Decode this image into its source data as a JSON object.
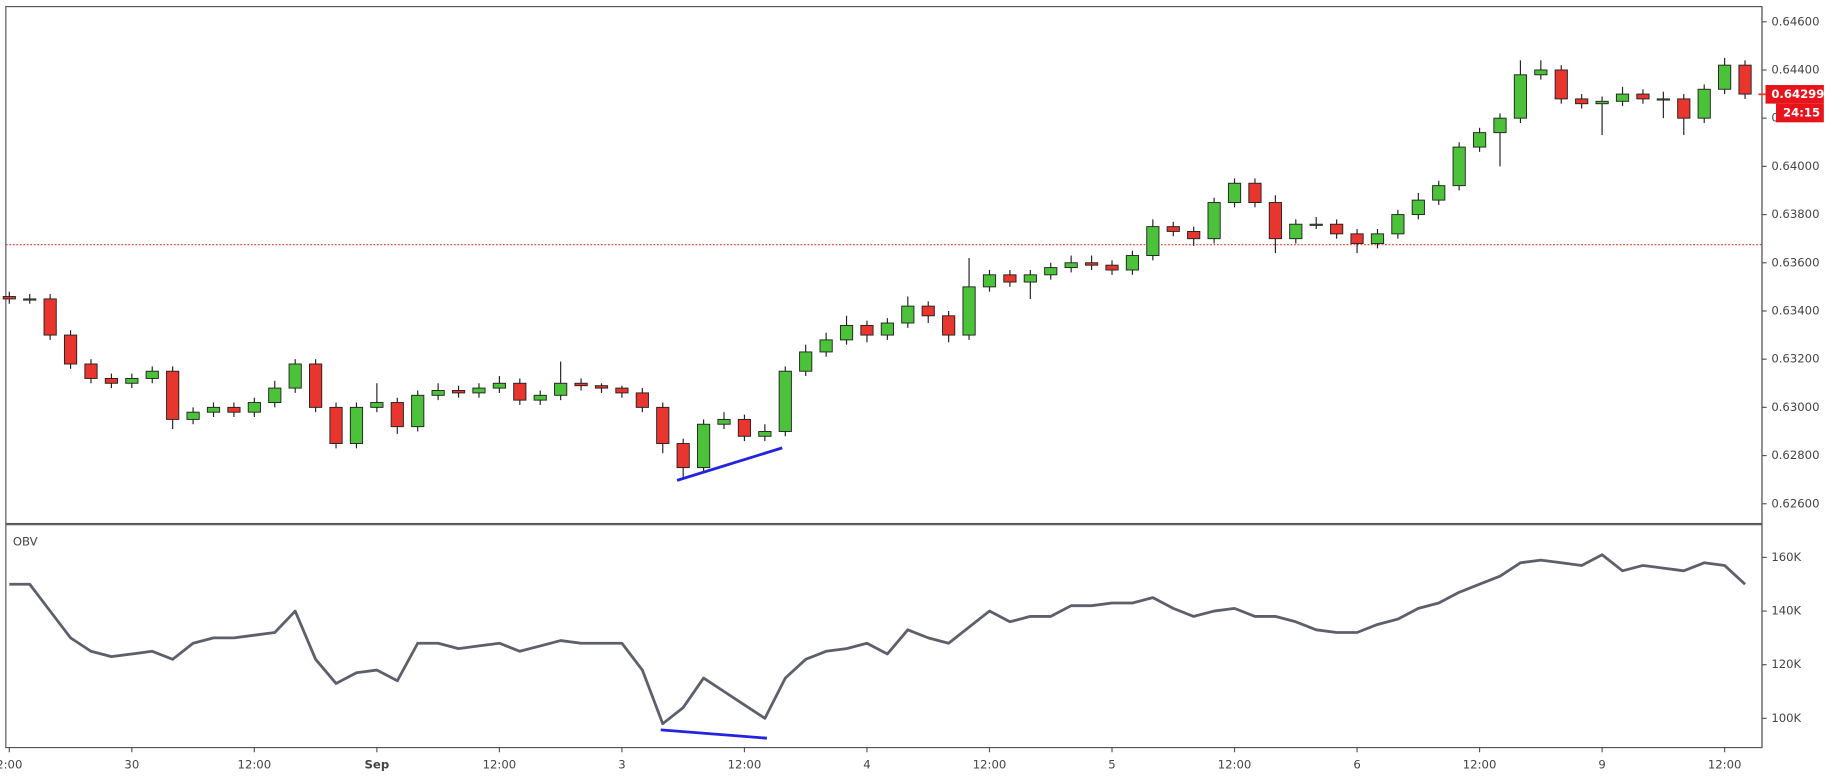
{
  "chart_data": [
    {
      "type": "candlestick",
      "x": [
        0,
        2,
        4,
        6,
        8,
        10,
        12,
        14,
        16,
        18,
        20,
        22,
        24,
        26,
        28,
        30,
        32,
        34,
        36,
        38,
        40,
        42,
        44,
        46,
        48,
        50,
        52,
        54,
        56,
        58,
        60,
        62,
        64,
        66,
        68,
        70,
        72,
        74,
        76,
        78,
        80,
        82,
        84,
        86,
        88,
        90,
        92,
        94,
        96,
        98,
        100,
        102,
        104,
        106,
        108,
        110,
        112,
        114,
        116,
        118,
        120,
        122,
        124,
        126,
        128,
        130,
        132,
        134,
        136,
        138,
        140,
        142,
        144,
        146,
        148,
        150,
        152,
        154,
        156,
        158,
        160,
        162,
        164,
        166,
        168,
        170
      ],
      "open": [
        0.6346,
        0.6345,
        0.6345,
        0.633,
        0.6318,
        0.6312,
        0.631,
        0.6312,
        0.6315,
        0.6295,
        0.6298,
        0.63,
        0.6298,
        0.6302,
        0.6308,
        0.6318,
        0.63,
        0.6285,
        0.63,
        0.6302,
        0.6292,
        0.6305,
        0.6307,
        0.6306,
        0.6308,
        0.631,
        0.6303,
        0.6305,
        0.631,
        0.6309,
        0.6308,
        0.6306,
        0.63,
        0.6285,
        0.6275,
        0.6293,
        0.6295,
        0.6288,
        0.629,
        0.6315,
        0.6323,
        0.6328,
        0.6334,
        0.633,
        0.6335,
        0.6342,
        0.6338,
        0.633,
        0.635,
        0.6355,
        0.6352,
        0.6355,
        0.6358,
        0.636,
        0.6359,
        0.6357,
        0.6363,
        0.6375,
        0.6373,
        0.637,
        0.6385,
        0.6393,
        0.6385,
        0.637,
        0.6376,
        0.6376,
        0.6372,
        0.6368,
        0.6372,
        0.638,
        0.6386,
        0.6392,
        0.6408,
        0.6414,
        0.642,
        0.6438,
        0.644,
        0.6428,
        0.6426,
        0.6427,
        0.643,
        0.6428,
        0.6428,
        0.642,
        0.6432,
        0.6442
      ],
      "high": [
        0.6348,
        0.6347,
        0.6347,
        0.6332,
        0.632,
        0.6314,
        0.6314,
        0.6317,
        0.6317,
        0.63,
        0.6302,
        0.6302,
        0.6304,
        0.6311,
        0.632,
        0.632,
        0.6302,
        0.6302,
        0.631,
        0.6304,
        0.6307,
        0.631,
        0.6309,
        0.631,
        0.6313,
        0.6312,
        0.6307,
        0.6319,
        0.6312,
        0.631,
        0.6309,
        0.6308,
        0.6302,
        0.6287,
        0.6295,
        0.6298,
        0.6297,
        0.6293,
        0.6317,
        0.6326,
        0.6331,
        0.6338,
        0.6336,
        0.6337,
        0.6346,
        0.6344,
        0.634,
        0.6362,
        0.6357,
        0.6357,
        0.6357,
        0.636,
        0.6363,
        0.6363,
        0.6361,
        0.6365,
        0.6378,
        0.6377,
        0.6375,
        0.6387,
        0.6395,
        0.6395,
        0.6388,
        0.6378,
        0.6379,
        0.6378,
        0.6374,
        0.6374,
        0.6382,
        0.6389,
        0.6394,
        0.641,
        0.6416,
        0.6422,
        0.6444,
        0.6444,
        0.6442,
        0.643,
        0.6429,
        0.6433,
        0.6432,
        0.6431,
        0.643,
        0.6434,
        0.6445,
        0.6444
      ],
      "low": [
        0.6343,
        0.6343,
        0.6328,
        0.6316,
        0.631,
        0.6308,
        0.6308,
        0.631,
        0.6291,
        0.6293,
        0.6296,
        0.6296,
        0.6296,
        0.63,
        0.6306,
        0.6298,
        0.6283,
        0.6283,
        0.6298,
        0.6289,
        0.629,
        0.6303,
        0.6304,
        0.6304,
        0.6306,
        0.6301,
        0.6301,
        0.6303,
        0.6307,
        0.6306,
        0.6304,
        0.6298,
        0.6281,
        0.627,
        0.6273,
        0.6291,
        0.6286,
        0.6286,
        0.6288,
        0.6313,
        0.6321,
        0.6326,
        0.6327,
        0.6328,
        0.6333,
        0.6335,
        0.6327,
        0.6328,
        0.6348,
        0.635,
        0.6345,
        0.6353,
        0.6356,
        0.6357,
        0.6355,
        0.6355,
        0.6361,
        0.6371,
        0.6367,
        0.6368,
        0.6383,
        0.6383,
        0.6364,
        0.6368,
        0.6374,
        0.637,
        0.6364,
        0.6366,
        0.637,
        0.6378,
        0.6384,
        0.639,
        0.6406,
        0.64,
        0.6418,
        0.6436,
        0.6426,
        0.6424,
        0.6413,
        0.6425,
        0.6426,
        0.642,
        0.6413,
        0.6418,
        0.643,
        0.6428
      ],
      "close": [
        0.6345,
        0.6345,
        0.633,
        0.6318,
        0.6312,
        0.631,
        0.6312,
        0.6315,
        0.6295,
        0.6298,
        0.63,
        0.6298,
        0.6302,
        0.6308,
        0.6318,
        0.63,
        0.6285,
        0.63,
        0.6302,
        0.6292,
        0.6305,
        0.6307,
        0.6306,
        0.6308,
        0.631,
        0.6303,
        0.6305,
        0.631,
        0.6309,
        0.6308,
        0.6306,
        0.63,
        0.6285,
        0.6275,
        0.6293,
        0.6295,
        0.6288,
        0.629,
        0.6315,
        0.6323,
        0.6328,
        0.6334,
        0.633,
        0.6335,
        0.6342,
        0.6338,
        0.633,
        0.635,
        0.6355,
        0.6352,
        0.6355,
        0.6358,
        0.636,
        0.6359,
        0.6357,
        0.6363,
        0.6375,
        0.6373,
        0.637,
        0.6385,
        0.6393,
        0.6385,
        0.637,
        0.6376,
        0.6376,
        0.6372,
        0.6368,
        0.6372,
        0.638,
        0.6386,
        0.6392,
        0.6408,
        0.6414,
        0.642,
        0.6438,
        0.644,
        0.6428,
        0.6426,
        0.6427,
        0.643,
        0.6428,
        0.6428,
        0.642,
        0.6432,
        0.6442,
        0.643
      ],
      "color_up": "#4cc23a",
      "color_down": "#e8352d",
      "xlim": [
        -0.34,
        171.66
      ],
      "ylim": [
        0.62518,
        0.64663
      ],
      "yticks": [
        {
          "value": 0.626,
          "label": "0.62600"
        },
        {
          "value": 0.628,
          "label": "0.62800"
        },
        {
          "value": 0.63,
          "label": "0.63000"
        },
        {
          "value": 0.632,
          "label": "0.63200"
        },
        {
          "value": 0.634,
          "label": "0.63400"
        },
        {
          "value": 0.636,
          "label": "0.63600"
        },
        {
          "value": 0.638,
          "label": "0.63800"
        },
        {
          "value": 0.64,
          "label": "0.64000"
        },
        {
          "value": 0.642,
          "label": "0.64200"
        },
        {
          "value": 0.644,
          "label": "0.64400"
        },
        {
          "value": 0.646,
          "label": "0.64600"
        }
      ],
      "reference_line": {
        "value": 0.63675,
        "color": "#e8352d"
      },
      "last_price": 0.64299,
      "countdown": "24:15",
      "trendline": {
        "x": [
          65.4,
          75.7
        ],
        "y": [
          0.62697,
          0.62832
        ],
        "color": "#2323e0"
      }
    },
    {
      "type": "line",
      "title": "OBV",
      "x": [
        0,
        2,
        4,
        6,
        8,
        10,
        12,
        14,
        16,
        18,
        20,
        22,
        24,
        26,
        28,
        30,
        32,
        34,
        36,
        38,
        40,
        42,
        44,
        46,
        48,
        50,
        52,
        54,
        56,
        58,
        60,
        62,
        64,
        66,
        68,
        70,
        72,
        74,
        76,
        78,
        80,
        82,
        84,
        86,
        88,
        90,
        92,
        94,
        96,
        98,
        100,
        102,
        104,
        106,
        108,
        110,
        112,
        114,
        116,
        118,
        120,
        122,
        124,
        126,
        128,
        130,
        132,
        134,
        136,
        138,
        140,
        142,
        144,
        146,
        148,
        150,
        152,
        154,
        156,
        158,
        160,
        162,
        164,
        166,
        168,
        170
      ],
      "series": [
        {
          "color": "#5d606b",
          "values": [
            150000,
            150000,
            140000,
            130000,
            125000,
            123000,
            124000,
            125000,
            122000,
            128000,
            130000,
            130000,
            131000,
            132000,
            140000,
            122000,
            113000,
            117000,
            118000,
            114000,
            128000,
            128000,
            126000,
            127000,
            128000,
            125000,
            127000,
            129000,
            128000,
            128000,
            128000,
            118000,
            98000,
            104000,
            115000,
            110000,
            105000,
            100000,
            115000,
            122000,
            125000,
            126000,
            128000,
            124000,
            133000,
            130000,
            128000,
            134000,
            140000,
            136000,
            138000,
            138000,
            142000,
            142000,
            143000,
            143000,
            145000,
            141000,
            138000,
            140000,
            141000,
            138000,
            138000,
            136000,
            133000,
            132000,
            132000,
            135000,
            137000,
            141000,
            143000,
            147000,
            150000,
            153000,
            158000,
            159000,
            158000,
            157000,
            161000,
            155000,
            157000,
            156000,
            155000,
            158000,
            157000,
            150000
          ]
        }
      ],
      "xlim": [
        -0.34,
        171.66
      ],
      "xticks": [
        {
          "value": 0,
          "label": "2:00"
        },
        {
          "value": 12,
          "label": "30"
        },
        {
          "value": 24,
          "label": "12:00"
        },
        {
          "value": 36,
          "label": "Sep"
        },
        {
          "value": 48,
          "label": "12:00"
        },
        {
          "value": 60,
          "label": "3"
        },
        {
          "value": 72,
          "label": "12:00"
        },
        {
          "value": 84,
          "label": "4"
        },
        {
          "value": 96,
          "label": "12:00"
        },
        {
          "value": 108,
          "label": "5"
        },
        {
          "value": 120,
          "label": "12:00"
        },
        {
          "value": 132,
          "label": "6"
        },
        {
          "value": 144,
          "label": "12:00"
        },
        {
          "value": 156,
          "label": "9"
        },
        {
          "value": 168,
          "label": "12:00"
        }
      ],
      "ylim": [
        89100,
        172200
      ],
      "yticks": [
        {
          "value": 100000,
          "label": "100K"
        },
        {
          "value": 120000,
          "label": "120K"
        },
        {
          "value": 140000,
          "label": "140K"
        },
        {
          "value": 160000,
          "label": "160K"
        }
      ],
      "trendline": {
        "x": [
          63.8,
          74.2
        ],
        "y": [
          95700,
          92600
        ],
        "color": "#2323e0"
      }
    }
  ]
}
